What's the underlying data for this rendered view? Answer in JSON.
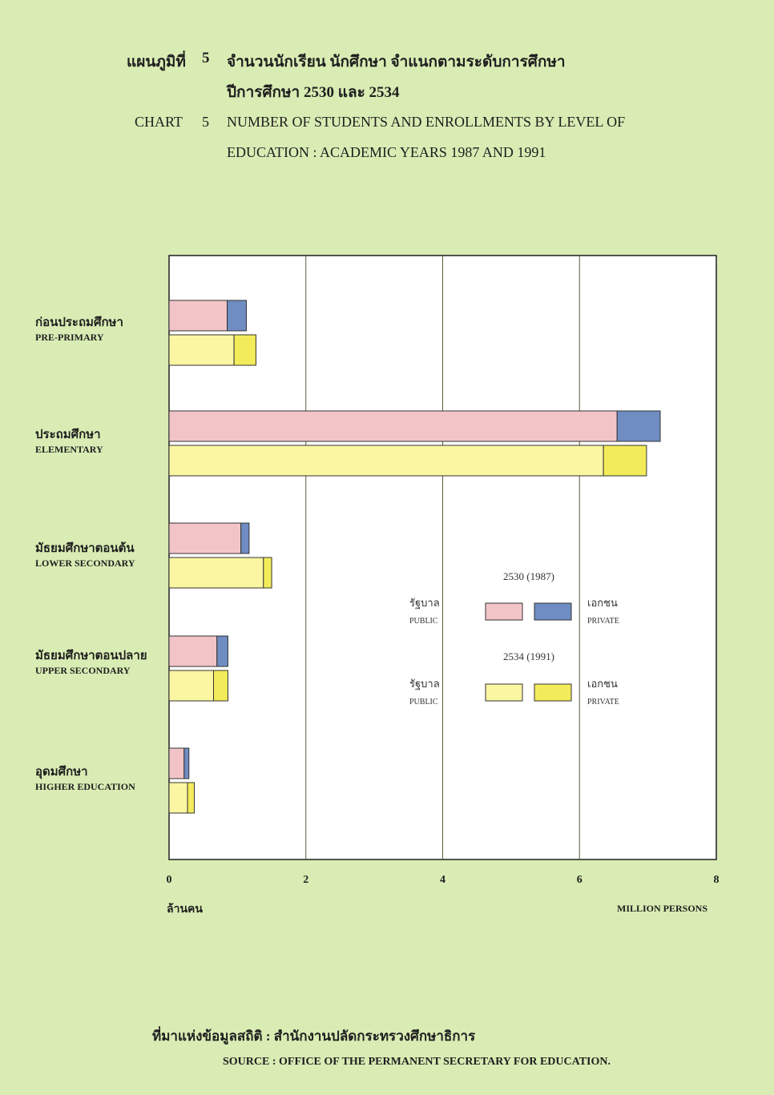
{
  "header": {
    "thai_label": "แผนภูมิที่",
    "number": "5",
    "thai_line1": "จำนวนนักเรียน นักศึกษา จำแนกตามระดับการศึกษา",
    "thai_line2": "ปีการศึกษา 2530 และ 2534",
    "eng_label": "CHART",
    "eng_line1": "NUMBER OF STUDENTS AND ENROLLMENTS BY LEVEL OF",
    "eng_line2": "EDUCATION : ACADEMIC YEARS 1987 AND 1991"
  },
  "chart_data": {
    "type": "bar",
    "orientation": "horizontal",
    "stacked": true,
    "categories": [
      {
        "th": "ก่อนประถมศึกษา",
        "en": "PRE-PRIMARY"
      },
      {
        "th": "ประถมศึกษา",
        "en": "ELEMENTARY"
      },
      {
        "th": "มัธยมศึกษาตอนต้น",
        "en": "LOWER SECONDARY"
      },
      {
        "th": "มัธยมศึกษาตอนปลาย",
        "en": "UPPER SECONDARY"
      },
      {
        "th": "อุดมศึกษา",
        "en": "HIGHER EDUCATION"
      }
    ],
    "years": [
      {
        "label": "2530 (1987)",
        "public": [
          0.85,
          6.55,
          1.05,
          0.7,
          0.22
        ],
        "private": [
          0.28,
          0.63,
          0.12,
          0.16,
          0.07
        ]
      },
      {
        "label": "2534 (1991)",
        "public": [
          0.95,
          6.35,
          1.38,
          0.65,
          0.27
        ],
        "private": [
          0.32,
          0.63,
          0.12,
          0.21,
          0.1
        ]
      }
    ],
    "xlim": [
      0,
      8
    ],
    "xticks": [
      "0",
      "2",
      "4",
      "6",
      "8"
    ],
    "x_unit_th": "ล้านคน",
    "x_unit_en": "MILLION PERSONS",
    "grid": "vertical",
    "legend": {
      "position": "right",
      "public_th": "รัฐบาล",
      "public_en": "PUBLIC",
      "private_th": "เอกชน",
      "private_en": "PRIVATE"
    },
    "colors": {
      "public_1987": "#f2c4c8",
      "private_1987": "#6f8dc2",
      "public_1991": "#fbf6a2",
      "private_1991": "#f3ec5a"
    }
  },
  "source": {
    "thai": "ที่มาแห่งข้อมูลสถิติ : สำนักงานปลัดกระทรวงศึกษาธิการ",
    "eng": "SOURCE : OFFICE OF THE PERMANENT SECRETARY FOR EDUCATION."
  }
}
